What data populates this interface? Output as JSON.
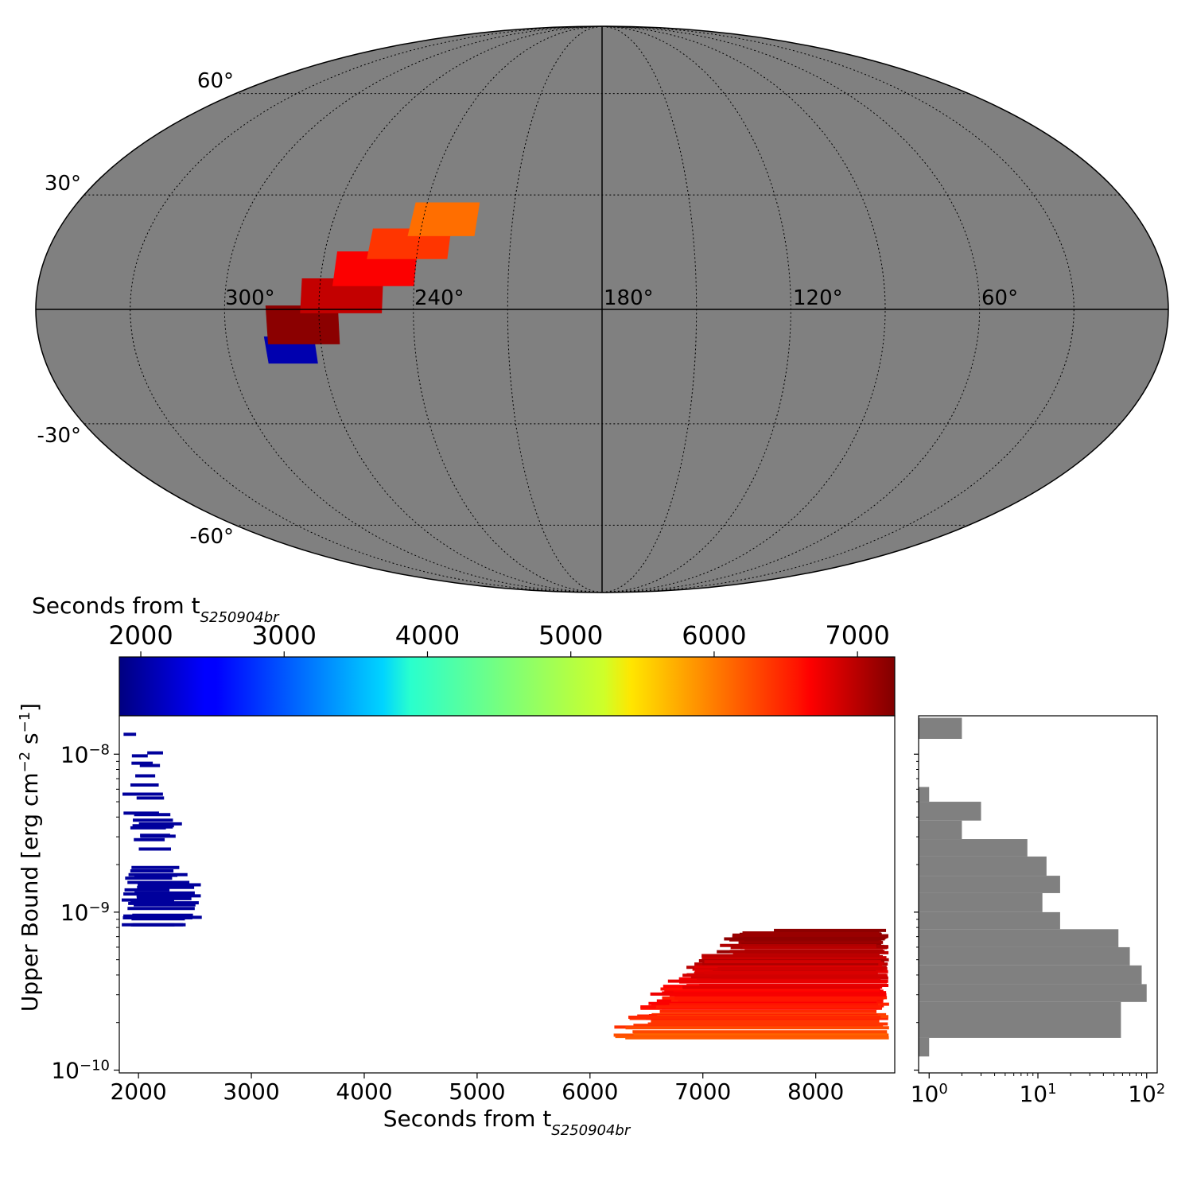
{
  "chart_data": [
    {
      "type": "map",
      "projection": "mollweide",
      "background": "#808080",
      "grid": true,
      "lat_labels": [
        "60°",
        "30°",
        "-30°",
        "-60°"
      ],
      "lon_labels": [
        "300°",
        "240°",
        "180°",
        "120°",
        "60°"
      ],
      "localization_region": {
        "ra_range_deg": [
          222,
          288
        ],
        "dec_range_deg": [
          -14,
          28
        ],
        "segments": [
          {
            "ra_lo": 272,
            "ra_hi": 288,
            "dec_lo": -14,
            "dec_hi": -7,
            "time_s": 2100
          },
          {
            "ra_lo": 264,
            "ra_hi": 287,
            "dec_lo": -9,
            "dec_hi": 1,
            "time_s": 7200
          },
          {
            "ra_lo": 250,
            "ra_hi": 276,
            "dec_lo": -1,
            "dec_hi": 8,
            "time_s": 6900
          },
          {
            "ra_lo": 240,
            "ra_hi": 266,
            "dec_lo": 6,
            "dec_hi": 15,
            "time_s": 6600
          },
          {
            "ra_lo": 230,
            "ra_hi": 256,
            "dec_lo": 13,
            "dec_hi": 21,
            "time_s": 6300
          },
          {
            "ra_lo": 222,
            "ra_hi": 244,
            "dec_lo": 19,
            "dec_hi": 28,
            "time_s": 6000
          }
        ]
      }
    },
    {
      "type": "colorbar",
      "label": "Seconds from t",
      "label_sub": "S250904br",
      "colormap": "jet",
      "range": [
        1850,
        7260
      ],
      "ticks": [
        "2000",
        "3000",
        "4000",
        "5000",
        "6000",
        "7000"
      ]
    },
    {
      "type": "horizontal-interval",
      "xlabel": "Seconds from t",
      "xlabel_sub": "S250904br",
      "ylabel": "Upper Bound [erg cm",
      "ylabel_sup1": "−2",
      "ylabel_mid": " s",
      "ylabel_sup2": "−1",
      "ylabel_end": "]",
      "xlim": [
        1830,
        8700
      ],
      "ylim": [
        9.6e-11,
        1.75e-08
      ],
      "yscale": "log",
      "x_ticks": [
        "2000",
        "3000",
        "4000",
        "5000",
        "6000",
        "7000",
        "8000"
      ],
      "y_ticks": [
        {
          "base": "10",
          "exp": "−8"
        },
        {
          "base": "10",
          "exp": "−9"
        },
        {
          "base": "10",
          "exp": "−10"
        }
      ],
      "early_cluster": {
        "time_start_s": 1850,
        "time_end_s": 2650,
        "y_min": 8.3e-10,
        "y_max": 1.6e-08,
        "color_time_s": 2000
      },
      "late_cluster": {
        "time_start_s": 6000,
        "time_end_s": 8650,
        "y_min": 1.6e-10,
        "y_max": 7.8e-10,
        "color_time_range_s": [
          6000,
          7260
        ]
      }
    },
    {
      "type": "histogram",
      "orientation": "horizontal",
      "xscale": "log",
      "xlim": [
        0.8,
        125
      ],
      "x_ticks": [
        {
          "base": "10",
          "exp": "0"
        },
        {
          "base": "10",
          "exp": "1"
        },
        {
          "base": "10",
          "exp": "2"
        }
      ],
      "color": "#808080",
      "bins": [
        {
          "y_lo": 1.25e-08,
          "y_hi": 1.7e-08,
          "count": 2
        },
        {
          "y_lo": 5e-09,
          "y_hi": 6.2e-09,
          "count": 1
        },
        {
          "y_lo": 3.8e-09,
          "y_hi": 5e-09,
          "count": 3
        },
        {
          "y_lo": 2.9e-09,
          "y_hi": 3.8e-09,
          "count": 2
        },
        {
          "y_lo": 2.25e-09,
          "y_hi": 2.9e-09,
          "count": 8
        },
        {
          "y_lo": 1.7e-09,
          "y_hi": 2.25e-09,
          "count": 12
        },
        {
          "y_lo": 1.32e-09,
          "y_hi": 1.7e-09,
          "count": 16
        },
        {
          "y_lo": 1e-09,
          "y_hi": 1.32e-09,
          "count": 11
        },
        {
          "y_lo": 7.8e-10,
          "y_hi": 1e-09,
          "count": 16
        },
        {
          "y_lo": 6e-10,
          "y_hi": 7.8e-10,
          "count": 55
        },
        {
          "y_lo": 4.6e-10,
          "y_hi": 6e-10,
          "count": 70
        },
        {
          "y_lo": 3.5e-10,
          "y_hi": 4.6e-10,
          "count": 90
        },
        {
          "y_lo": 2.7e-10,
          "y_hi": 3.5e-10,
          "count": 100
        },
        {
          "y_lo": 1.6e-10,
          "y_hi": 2.7e-10,
          "count": 58
        },
        {
          "y_lo": 1.22e-10,
          "y_hi": 1.6e-10,
          "count": 1
        }
      ]
    }
  ]
}
